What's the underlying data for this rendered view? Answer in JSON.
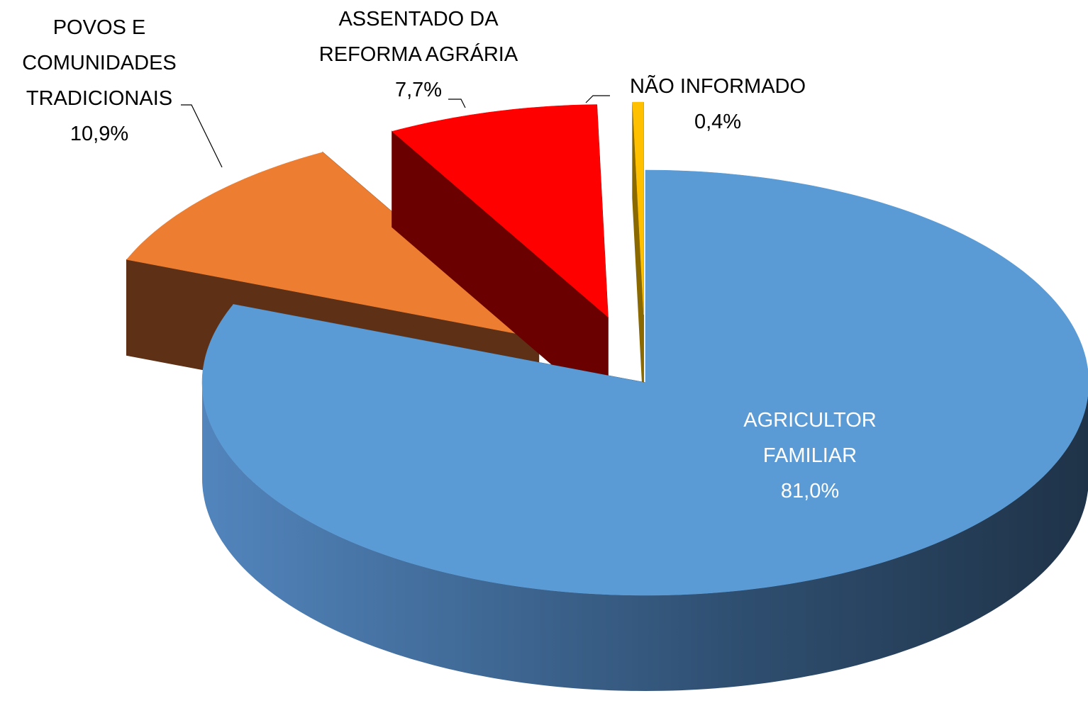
{
  "chart_data": {
    "type": "pie3d",
    "categories": [
      "AGRICULTOR FAMILIAR",
      "POVOS E COMUNIDADES TRADICIONAIS",
      "ASSENTADO DA REFORMA AGRÁRIA",
      "NÃO INFORMADO"
    ],
    "values": [
      81.0,
      10.9,
      7.7,
      0.4
    ],
    "value_labels": [
      "81,0%",
      "10,9%",
      "7,7%",
      "0,4%"
    ],
    "colors": [
      "#5b9bd5",
      "#ed7d31",
      "#ff0000",
      "#ffc000"
    ]
  }
}
